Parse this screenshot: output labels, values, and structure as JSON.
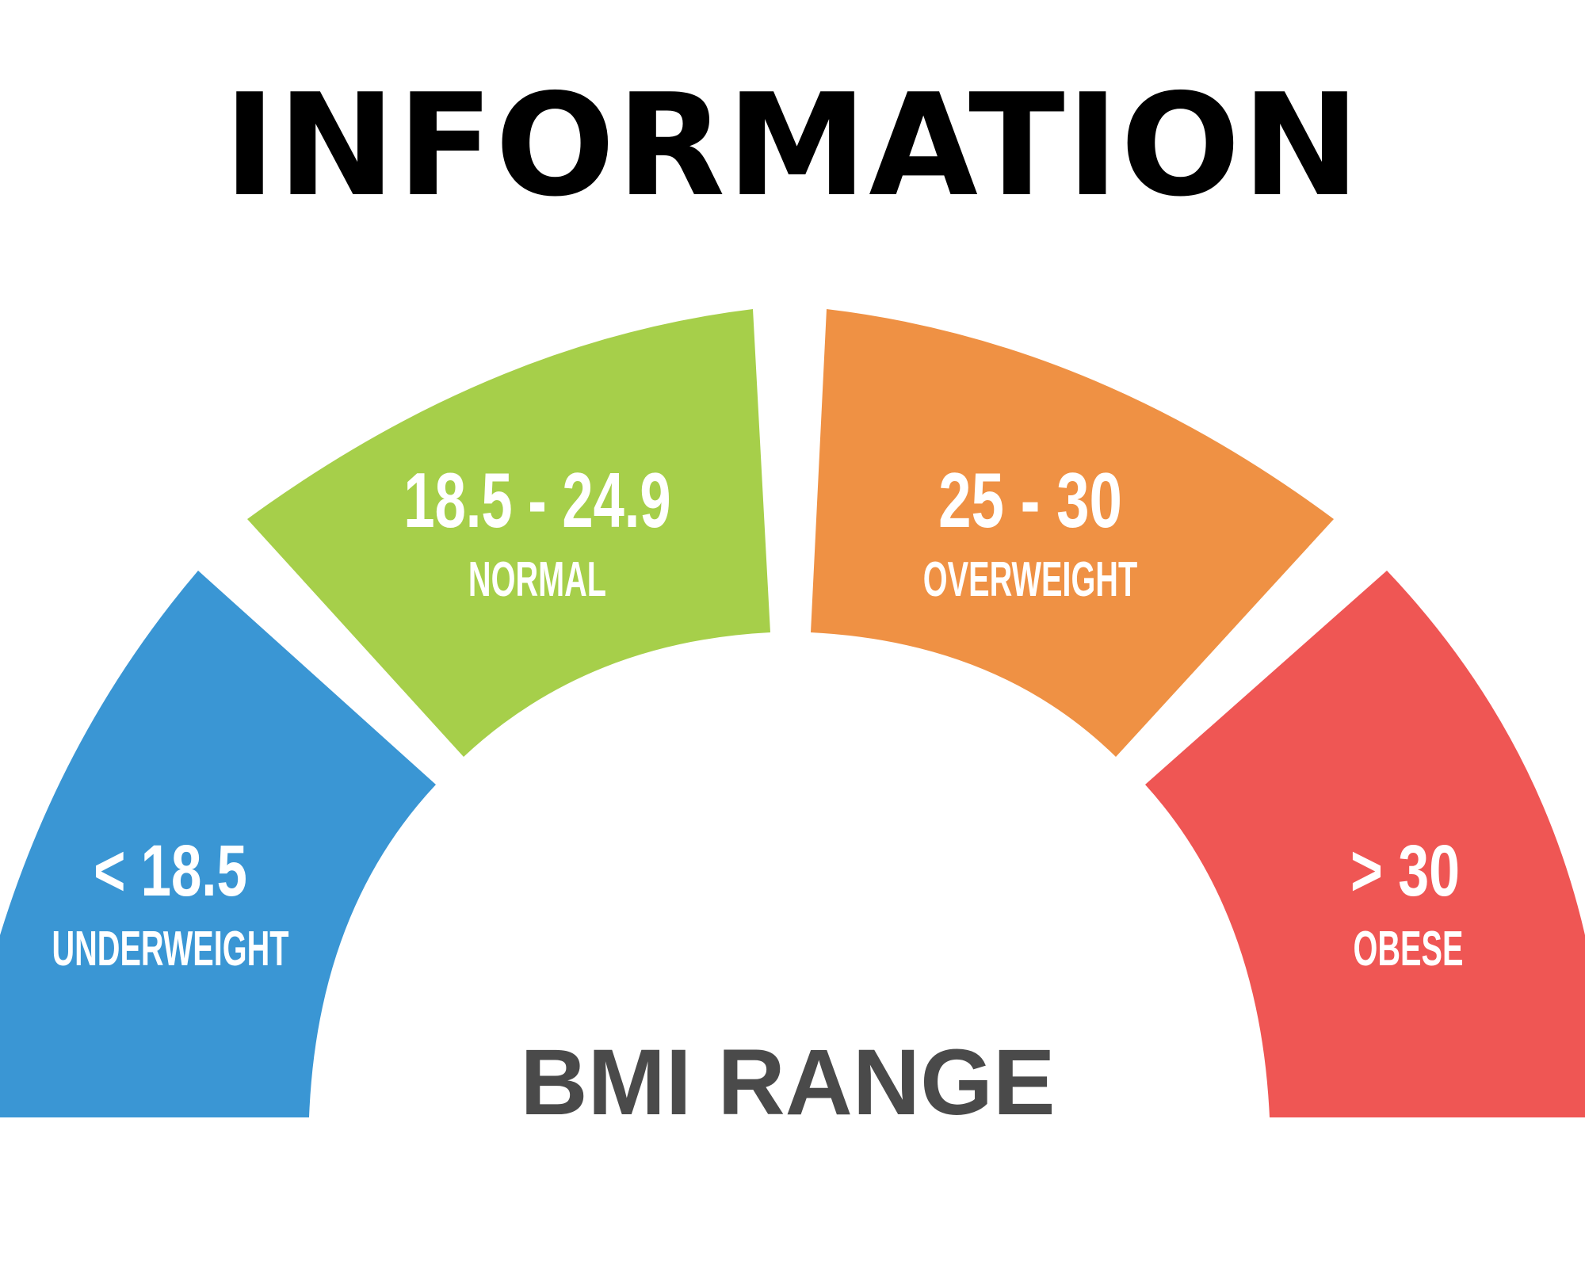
{
  "title": "INFORMATION",
  "gauge": {
    "caption": "BMI RANGE",
    "segments": [
      {
        "range": "< 18.5",
        "label": "UNDERWEIGHT",
        "color": "#3a96d4"
      },
      {
        "range": "18.5 - 24.9",
        "label": "NORMAL",
        "color": "#a6cf4a"
      },
      {
        "range": "25 - 30",
        "label": "OVERWEIGHT",
        "color": "#ef9144"
      },
      {
        "range": "> 30",
        "label": "OBESE",
        "color": "#ef5654"
      }
    ]
  }
}
